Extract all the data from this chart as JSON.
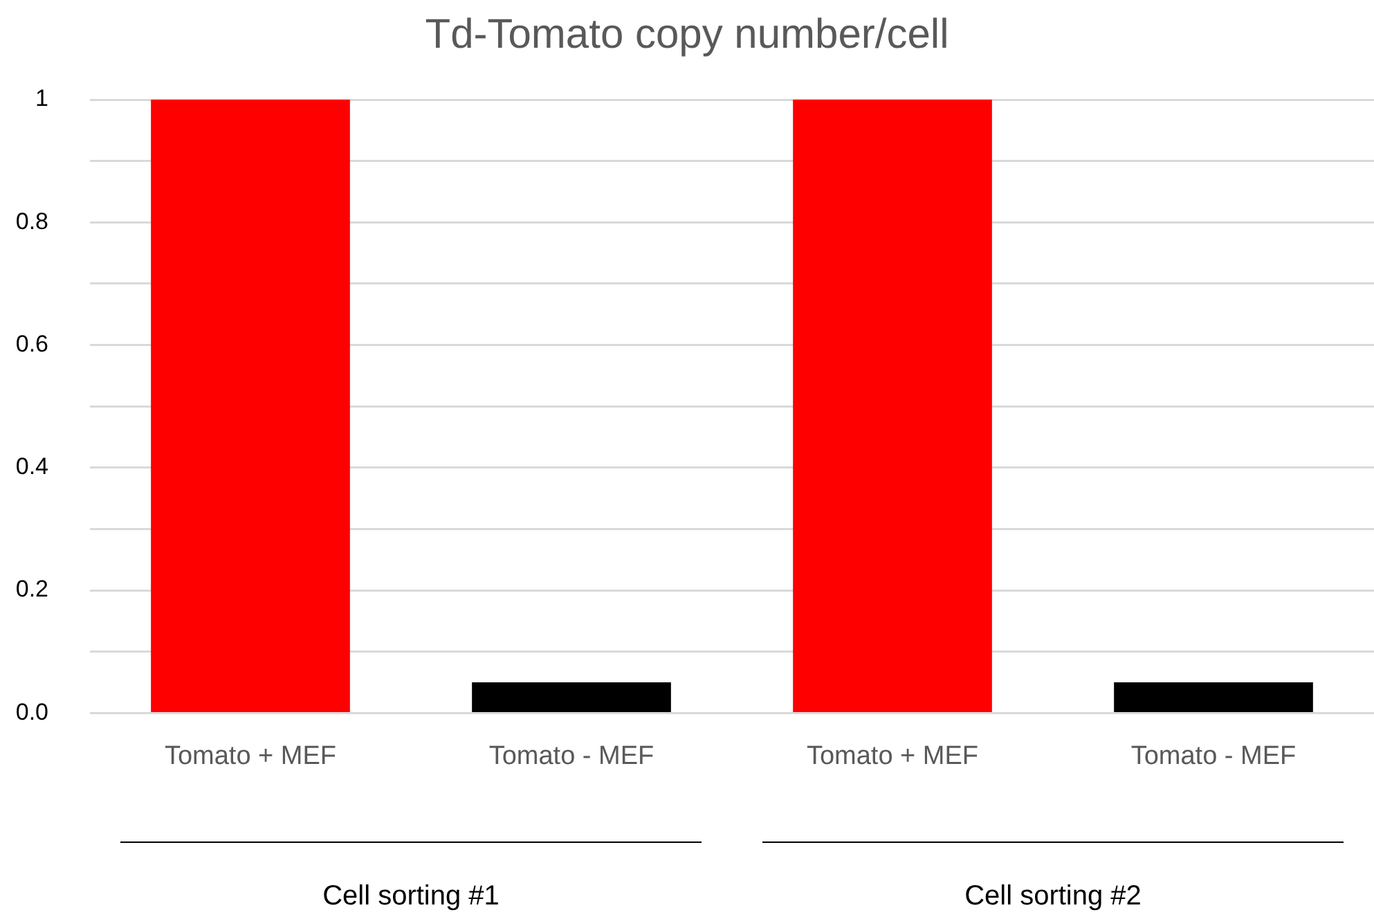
{
  "chart_data": {
    "type": "bar",
    "title": "Td-Tomato copy number/cell",
    "categories": [
      "Tomato + MEF",
      "Tomato - MEF",
      "Tomato + MEF",
      "Tomato - MEF"
    ],
    "values": [
      1,
      0.05,
      1,
      0.05
    ],
    "colors": [
      "#ff0000",
      "#000000",
      "#ff0000",
      "#000000"
    ],
    "ylim": [
      0,
      1
    ],
    "yticks": [
      {
        "value": 0,
        "label": "0.0"
      },
      {
        "value": 0.1,
        "label": null
      },
      {
        "value": 0.2,
        "label": "0.2"
      },
      {
        "value": 0.3,
        "label": null
      },
      {
        "value": 0.4,
        "label": "0.4"
      },
      {
        "value": 0.5,
        "label": null
      },
      {
        "value": 0.6,
        "label": "0.6"
      },
      {
        "value": 0.7,
        "label": null
      },
      {
        "value": 0.8,
        "label": "0.8"
      },
      {
        "value": 0.9,
        "label": null
      },
      {
        "value": 1,
        "label": "1"
      }
    ],
    "grid": "y",
    "annotations": [
      "Cell sorting #1",
      "Cell sorting #2"
    ]
  }
}
